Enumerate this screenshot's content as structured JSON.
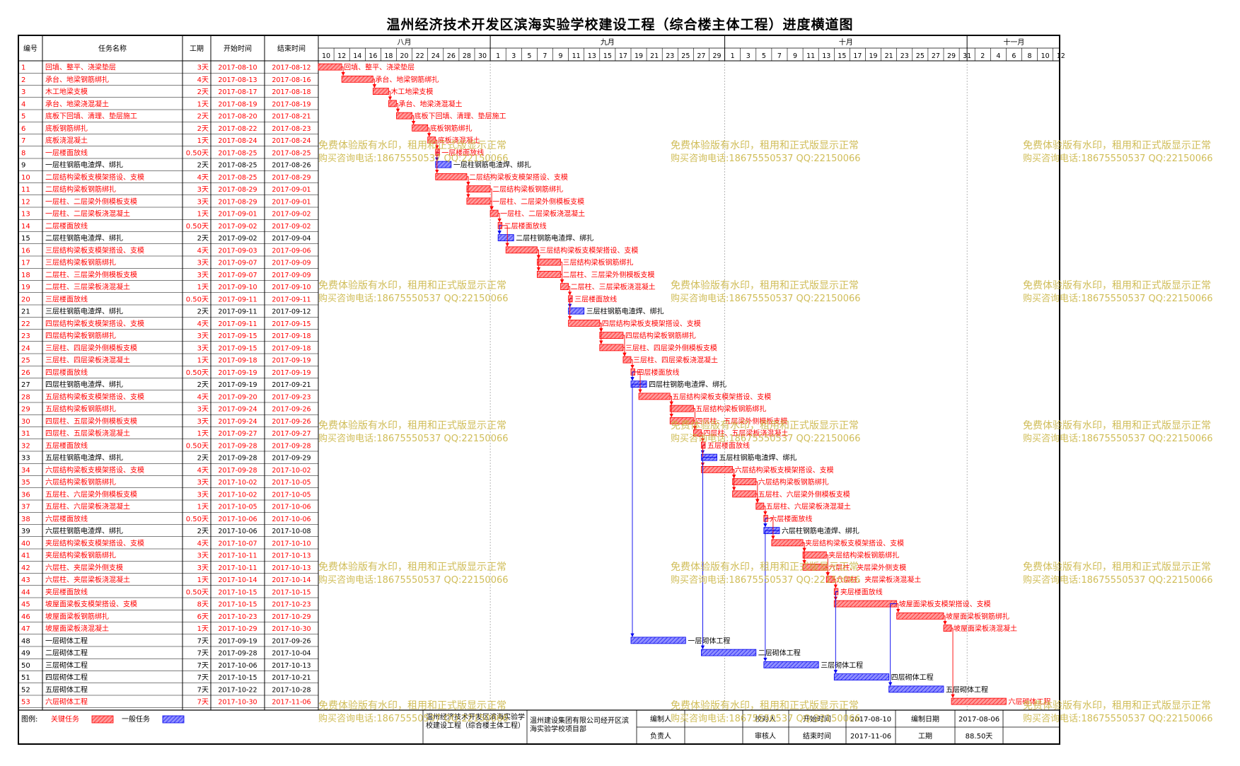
{
  "title": "温州经济技术开发区滨海实验学校建设工程（综合楼主体工程）进度横道图",
  "headers": {
    "id": "编号",
    "name": "任务名称",
    "duration": "工期",
    "start": "开始时间",
    "end": "结束时间"
  },
  "months": [
    {
      "label": "八月",
      "start": "2017-08-10",
      "end": "2017-08-31"
    },
    {
      "label": "九月",
      "start": "2017-09-01",
      "end": "2017-09-30"
    },
    {
      "label": "十月",
      "start": "2017-10-01",
      "end": "2017-10-31"
    },
    {
      "label": "十一月",
      "start": "2017-11-01",
      "end": "2017-11-12"
    }
  ],
  "day_ticks": [
    {
      "date": "2017-08-10",
      "label": "10"
    },
    {
      "date": "2017-08-12",
      "label": "12"
    },
    {
      "date": "2017-08-14",
      "label": "14"
    },
    {
      "date": "2017-08-16",
      "label": "16"
    },
    {
      "date": "2017-08-18",
      "label": "18"
    },
    {
      "date": "2017-08-20",
      "label": "20"
    },
    {
      "date": "2017-08-22",
      "label": "22"
    },
    {
      "date": "2017-08-24",
      "label": "24"
    },
    {
      "date": "2017-08-26",
      "label": "26"
    },
    {
      "date": "2017-08-28",
      "label": "28"
    },
    {
      "date": "2017-08-30",
      "label": "30"
    },
    {
      "date": "2017-09-01",
      "label": "1"
    },
    {
      "date": "2017-09-03",
      "label": "3"
    },
    {
      "date": "2017-09-05",
      "label": "5"
    },
    {
      "date": "2017-09-07",
      "label": "7"
    },
    {
      "date": "2017-09-09",
      "label": "9"
    },
    {
      "date": "2017-09-11",
      "label": "11"
    },
    {
      "date": "2017-09-13",
      "label": "13"
    },
    {
      "date": "2017-09-15",
      "label": "15"
    },
    {
      "date": "2017-09-17",
      "label": "17"
    },
    {
      "date": "2017-09-19",
      "label": "19"
    },
    {
      "date": "2017-09-21",
      "label": "21"
    },
    {
      "date": "2017-09-23",
      "label": "23"
    },
    {
      "date": "2017-09-25",
      "label": "25"
    },
    {
      "date": "2017-09-27",
      "label": "27"
    },
    {
      "date": "2017-09-29",
      "label": "29"
    },
    {
      "date": "2017-10-01",
      "label": "1"
    },
    {
      "date": "2017-10-03",
      "label": "3"
    },
    {
      "date": "2017-10-05",
      "label": "5"
    },
    {
      "date": "2017-10-07",
      "label": "7"
    },
    {
      "date": "2017-10-09",
      "label": "9"
    },
    {
      "date": "2017-10-11",
      "label": "11"
    },
    {
      "date": "2017-10-13",
      "label": "13"
    },
    {
      "date": "2017-10-15",
      "label": "15"
    },
    {
      "date": "2017-10-17",
      "label": "17"
    },
    {
      "date": "2017-10-19",
      "label": "19"
    },
    {
      "date": "2017-10-21",
      "label": "21"
    },
    {
      "date": "2017-10-23",
      "label": "23"
    },
    {
      "date": "2017-10-25",
      "label": "25"
    },
    {
      "date": "2017-10-27",
      "label": "27"
    },
    {
      "date": "2017-10-29",
      "label": "29"
    },
    {
      "date": "2017-10-31",
      "label": "31"
    },
    {
      "date": "2017-11-02",
      "label": "2"
    },
    {
      "date": "2017-11-04",
      "label": "4"
    },
    {
      "date": "2017-11-06",
      "label": "6"
    },
    {
      "date": "2017-11-08",
      "label": "8"
    },
    {
      "date": "2017-11-10",
      "label": "10"
    },
    {
      "date": "2017-11-12",
      "label": "12"
    }
  ],
  "colors": {
    "critical": "#ff0000",
    "critical_fill": "#ff9a9a",
    "normal": "#0000ee",
    "normal_fill": "#9090ff",
    "grid": "#000000",
    "watermark": "#c8b23c"
  },
  "chart_data": {
    "type": "gantt",
    "x_range": [
      "2017-08-10",
      "2017-11-12"
    ],
    "tasks": [
      {
        "id": "1",
        "name": "回填、整平、浇梁垫层",
        "duration": "3天",
        "start": "2017-08-10",
        "end": "2017-08-12",
        "critical": true
      },
      {
        "id": "2",
        "name": "承台、地梁钢筋绑扎",
        "duration": "4天",
        "start": "2017-08-13",
        "end": "2017-08-16",
        "critical": true
      },
      {
        "id": "3",
        "name": "木工地梁支模",
        "duration": "2天",
        "start": "2017-08-17",
        "end": "2017-08-18",
        "critical": true
      },
      {
        "id": "4",
        "name": "承台、地梁浇混凝土",
        "duration": "1天",
        "start": "2017-08-19",
        "end": "2017-08-19",
        "critical": true
      },
      {
        "id": "5",
        "name": "底板下回填、清理、垫层施工",
        "duration": "2天",
        "start": "2017-08-20",
        "end": "2017-08-21",
        "critical": true
      },
      {
        "id": "6",
        "name": "底板钢筋绑扎",
        "duration": "2天",
        "start": "2017-08-22",
        "end": "2017-08-23",
        "critical": true
      },
      {
        "id": "7",
        "name": "底板浇混凝土",
        "duration": "1天",
        "start": "2017-08-24",
        "end": "2017-08-24",
        "critical": true
      },
      {
        "id": "8",
        "name": "一层楼面放线",
        "duration": "0.50天",
        "start": "2017-08-25",
        "end": "2017-08-25",
        "critical": true
      },
      {
        "id": "9",
        "name": "一层柱钢筋电渣焊、绑扎",
        "duration": "2天",
        "start": "2017-08-25",
        "end": "2017-08-26",
        "critical": false
      },
      {
        "id": "10",
        "name": "二层结构梁板支模架搭设、支模",
        "duration": "4天",
        "start": "2017-08-25",
        "end": "2017-08-29",
        "critical": true
      },
      {
        "id": "11",
        "name": "二层结构梁板钢筋绑扎",
        "duration": "3天",
        "start": "2017-08-29",
        "end": "2017-09-01",
        "critical": true
      },
      {
        "id": "12",
        "name": "一层柱、二层梁外侧模板支模",
        "duration": "3天",
        "start": "2017-08-29",
        "end": "2017-09-01",
        "critical": true
      },
      {
        "id": "13",
        "name": "一层柱、二层梁板浇混凝土",
        "duration": "1天",
        "start": "2017-09-01",
        "end": "2017-09-02",
        "critical": true
      },
      {
        "id": "14",
        "name": "二层楼面放线",
        "duration": "0.50天",
        "start": "2017-09-02",
        "end": "2017-09-02",
        "critical": true
      },
      {
        "id": "15",
        "name": "二层柱钢筋电渣焊、绑扎",
        "duration": "2天",
        "start": "2017-09-02",
        "end": "2017-09-04",
        "critical": false
      },
      {
        "id": "16",
        "name": "三层结构梁板支模架搭设、支模",
        "duration": "4天",
        "start": "2017-09-03",
        "end": "2017-09-06",
        "critical": true
      },
      {
        "id": "17",
        "name": "三层结构梁板钢筋绑扎",
        "duration": "3天",
        "start": "2017-09-07",
        "end": "2017-09-09",
        "critical": true
      },
      {
        "id": "18",
        "name": "二层柱、三层梁外侧模板支模",
        "duration": "3天",
        "start": "2017-09-07",
        "end": "2017-09-09",
        "critical": true
      },
      {
        "id": "19",
        "name": "二层柱、三层梁板浇混凝土",
        "duration": "1天",
        "start": "2017-09-10",
        "end": "2017-09-10",
        "critical": true
      },
      {
        "id": "20",
        "name": "三层楼面放线",
        "duration": "0.50天",
        "start": "2017-09-11",
        "end": "2017-09-11",
        "critical": true
      },
      {
        "id": "21",
        "name": "三层柱钢筋电渣焊、绑扎",
        "duration": "2天",
        "start": "2017-09-11",
        "end": "2017-09-12",
        "critical": false
      },
      {
        "id": "22",
        "name": "四层结构梁板支模架搭设、支模",
        "duration": "4天",
        "start": "2017-09-11",
        "end": "2017-09-15",
        "critical": true
      },
      {
        "id": "23",
        "name": "四层结构梁板钢筋绑扎",
        "duration": "3天",
        "start": "2017-09-15",
        "end": "2017-09-18",
        "critical": true
      },
      {
        "id": "24",
        "name": "三层柱、四层梁外侧模板支模",
        "duration": "3天",
        "start": "2017-09-15",
        "end": "2017-09-18",
        "critical": true
      },
      {
        "id": "25",
        "name": "三层柱、四层梁板浇混凝土",
        "duration": "1天",
        "start": "2017-09-18",
        "end": "2017-09-19",
        "critical": true
      },
      {
        "id": "26",
        "name": "四层楼面放线",
        "duration": "0.50天",
        "start": "2017-09-19",
        "end": "2017-09-19",
        "critical": true
      },
      {
        "id": "27",
        "name": "四层柱钢筋电渣焊、绑扎",
        "duration": "2天",
        "start": "2017-09-19",
        "end": "2017-09-21",
        "critical": false
      },
      {
        "id": "28",
        "name": "五层结构梁板支模架搭设、支模",
        "duration": "4天",
        "start": "2017-09-20",
        "end": "2017-09-23",
        "critical": true
      },
      {
        "id": "29",
        "name": "五层结构梁板钢筋绑扎",
        "duration": "3天",
        "start": "2017-09-24",
        "end": "2017-09-26",
        "critical": true
      },
      {
        "id": "30",
        "name": "四层柱、五层梁外侧模板支模",
        "duration": "3天",
        "start": "2017-09-24",
        "end": "2017-09-26",
        "critical": true
      },
      {
        "id": "31",
        "name": "四层柱、五层梁板浇混凝土",
        "duration": "1天",
        "start": "2017-09-27",
        "end": "2017-09-27",
        "critical": true
      },
      {
        "id": "32",
        "name": "五层楼面放线",
        "duration": "0.50天",
        "start": "2017-09-28",
        "end": "2017-09-28",
        "critical": true
      },
      {
        "id": "33",
        "name": "五层柱钢筋电渣焊、绑扎",
        "duration": "2天",
        "start": "2017-09-28",
        "end": "2017-09-29",
        "critical": false
      },
      {
        "id": "34",
        "name": "六层结构梁板支模架搭设、支模",
        "duration": "4天",
        "start": "2017-09-28",
        "end": "2017-10-02",
        "critical": true
      },
      {
        "id": "35",
        "name": "六层结构梁板钢筋绑扎",
        "duration": "3天",
        "start": "2017-10-02",
        "end": "2017-10-05",
        "critical": true
      },
      {
        "id": "36",
        "name": "五层柱、六层梁外侧模板支模",
        "duration": "3天",
        "start": "2017-10-02",
        "end": "2017-10-05",
        "critical": true
      },
      {
        "id": "37",
        "name": "五层柱、六层梁板浇混凝土",
        "duration": "1天",
        "start": "2017-10-05",
        "end": "2017-10-06",
        "critical": true
      },
      {
        "id": "38",
        "name": "六层楼面放线",
        "duration": "0.50天",
        "start": "2017-10-06",
        "end": "2017-10-06",
        "critical": true
      },
      {
        "id": "39",
        "name": "六层柱钢筋电渣焊、绑扎",
        "duration": "2天",
        "start": "2017-10-06",
        "end": "2017-10-08",
        "critical": false
      },
      {
        "id": "40",
        "name": "夹层结构梁板支模架搭设、支模",
        "duration": "4天",
        "start": "2017-10-07",
        "end": "2017-10-10",
        "critical": true
      },
      {
        "id": "41",
        "name": "夹层结构梁板钢筋绑扎",
        "duration": "3天",
        "start": "2017-10-11",
        "end": "2017-10-13",
        "critical": true
      },
      {
        "id": "42",
        "name": "六层柱、夹层梁外侧支模",
        "duration": "3天",
        "start": "2017-10-11",
        "end": "2017-10-13",
        "critical": true
      },
      {
        "id": "43",
        "name": "六层柱、夹层梁板浇混凝土",
        "duration": "1天",
        "start": "2017-10-14",
        "end": "2017-10-14",
        "critical": true
      },
      {
        "id": "44",
        "name": "夹层楼面放线",
        "duration": "0.50天",
        "start": "2017-10-15",
        "end": "2017-10-15",
        "critical": true
      },
      {
        "id": "45",
        "name": "坡屋面梁板支模架搭设、支模",
        "duration": "8天",
        "start": "2017-10-15",
        "end": "2017-10-23",
        "critical": true
      },
      {
        "id": "46",
        "name": "坡屋面梁板钢筋绑扎",
        "duration": "6天",
        "start": "2017-10-23",
        "end": "2017-10-29",
        "critical": true
      },
      {
        "id": "47",
        "name": "坡屋面梁板浇混凝土",
        "duration": "1天",
        "start": "2017-10-29",
        "end": "2017-10-30",
        "critical": true
      },
      {
        "id": "48",
        "name": "一层砌体工程",
        "duration": "7天",
        "start": "2017-09-19",
        "end": "2017-09-26",
        "critical": false
      },
      {
        "id": "49",
        "name": "二层砌体工程",
        "duration": "7天",
        "start": "2017-09-28",
        "end": "2017-10-04",
        "critical": false
      },
      {
        "id": "50",
        "name": "三层砌体工程",
        "duration": "7天",
        "start": "2017-10-06",
        "end": "2017-10-13",
        "critical": false
      },
      {
        "id": "51",
        "name": "四层砌体工程",
        "duration": "7天",
        "start": "2017-10-15",
        "end": "2017-10-21",
        "critical": false
      },
      {
        "id": "52",
        "name": "五层砌体工程",
        "duration": "7天",
        "start": "2017-10-22",
        "end": "2017-10-28",
        "critical": false
      },
      {
        "id": "53",
        "name": "六层砌体工程",
        "duration": "7天",
        "start": "2017-10-30",
        "end": "2017-11-06",
        "critical": true
      }
    ]
  },
  "legend": {
    "label": "图例:",
    "critical": "关键任务",
    "normal": "一般任务"
  },
  "footer": {
    "project": "温州经济技术开发区滨海实验学校建设工程（综合楼主体工程）",
    "company": "温州建设集团有限公司经开区滨海实验学校项目部",
    "preparer_label": "编制人",
    "checker_label": "校对人",
    "owner_label": "负责人",
    "reviewer_label": "审核人",
    "start_label": "开始时间",
    "start_value": "2017-08-10",
    "end_label": "结束时间",
    "end_value": "2017-11-06",
    "date_label": "编制日期",
    "date_value": "2017-08-06",
    "duration_label": "工期",
    "duration_value": "88.50天"
  },
  "watermark": {
    "line1": "免费体验版有水印，租用和正式版显示正常",
    "line2": "购买咨询电话:18675550537 QQ:22150066"
  }
}
